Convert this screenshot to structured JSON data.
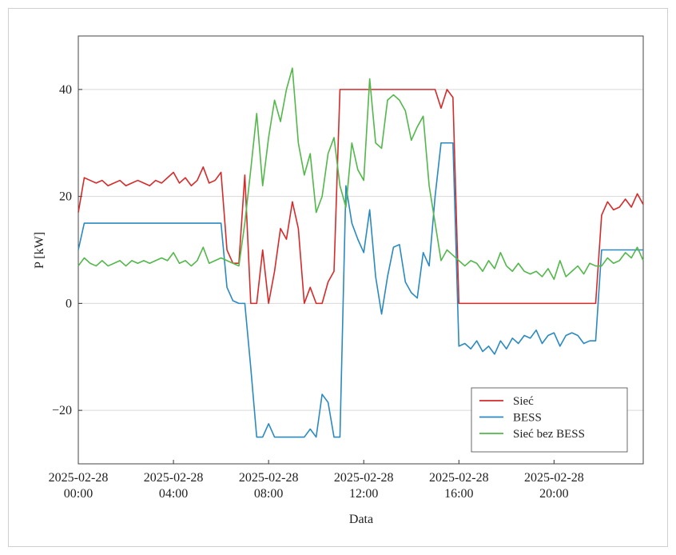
{
  "chart_data": {
    "type": "line",
    "xlabel": "Data",
    "ylabel": "P [kW]",
    "x": [
      "2025-02-28 00:00",
      "2025-02-28 00:15",
      "2025-02-28 00:30",
      "2025-02-28 00:45",
      "2025-02-28 01:00",
      "2025-02-28 01:15",
      "2025-02-28 01:30",
      "2025-02-28 01:45",
      "2025-02-28 02:00",
      "2025-02-28 02:15",
      "2025-02-28 02:30",
      "2025-02-28 02:45",
      "2025-02-28 03:00",
      "2025-02-28 03:15",
      "2025-02-28 03:30",
      "2025-02-28 03:45",
      "2025-02-28 04:00",
      "2025-02-28 04:15",
      "2025-02-28 04:30",
      "2025-02-28 04:45",
      "2025-02-28 05:00",
      "2025-02-28 05:15",
      "2025-02-28 05:30",
      "2025-02-28 05:45",
      "2025-02-28 06:00",
      "2025-02-28 06:15",
      "2025-02-28 06:30",
      "2025-02-28 06:45",
      "2025-02-28 07:00",
      "2025-02-28 07:15",
      "2025-02-28 07:30",
      "2025-02-28 07:45",
      "2025-02-28 08:00",
      "2025-02-28 08:15",
      "2025-02-28 08:30",
      "2025-02-28 08:45",
      "2025-02-28 09:00",
      "2025-02-28 09:15",
      "2025-02-28 09:30",
      "2025-02-28 09:45",
      "2025-02-28 10:00",
      "2025-02-28 10:15",
      "2025-02-28 10:30",
      "2025-02-28 10:45",
      "2025-02-28 11:00",
      "2025-02-28 11:15",
      "2025-02-28 11:30",
      "2025-02-28 11:45",
      "2025-02-28 12:00",
      "2025-02-28 12:15",
      "2025-02-28 12:30",
      "2025-02-28 12:45",
      "2025-02-28 13:00",
      "2025-02-28 13:15",
      "2025-02-28 13:30",
      "2025-02-28 13:45",
      "2025-02-28 14:00",
      "2025-02-28 14:15",
      "2025-02-28 14:30",
      "2025-02-28 14:45",
      "2025-02-28 15:00",
      "2025-02-28 15:15",
      "2025-02-28 15:30",
      "2025-02-28 15:45",
      "2025-02-28 16:00",
      "2025-02-28 16:15",
      "2025-02-28 16:30",
      "2025-02-28 16:45",
      "2025-02-28 17:00",
      "2025-02-28 17:15",
      "2025-02-28 17:30",
      "2025-02-28 17:45",
      "2025-02-28 18:00",
      "2025-02-28 18:15",
      "2025-02-28 18:30",
      "2025-02-28 18:45",
      "2025-02-28 19:00",
      "2025-02-28 19:15",
      "2025-02-28 19:30",
      "2025-02-28 19:45",
      "2025-02-28 20:00",
      "2025-02-28 20:15",
      "2025-02-28 20:30",
      "2025-02-28 20:45",
      "2025-02-28 21:00",
      "2025-02-28 21:15",
      "2025-02-28 21:30",
      "2025-02-28 21:45",
      "2025-02-28 22:00",
      "2025-02-28 22:15",
      "2025-02-28 22:30",
      "2025-02-28 22:45",
      "2025-02-28 23:00",
      "2025-02-28 23:15",
      "2025-02-28 23:30",
      "2025-02-28 23:45"
    ],
    "series": [
      {
        "name": "Sieć",
        "color": "#d62a2a",
        "values": [
          17,
          23.5,
          23,
          22.5,
          23,
          22,
          22.5,
          23,
          22,
          22.5,
          23,
          22.5,
          22,
          23,
          22.5,
          23.5,
          24.5,
          22.5,
          23.5,
          22,
          23,
          25.5,
          22.5,
          23,
          24.5,
          10,
          7.5,
          7.5,
          24,
          0,
          0,
          10,
          0,
          6,
          14,
          12,
          19,
          14,
          0,
          3,
          0,
          0,
          4,
          6,
          40,
          40,
          40,
          40,
          40,
          40,
          40,
          40,
          40,
          40,
          40,
          40,
          40,
          40,
          40,
          40,
          40,
          36.5,
          40,
          38.5,
          0,
          0,
          0,
          0,
          0,
          0,
          0,
          0,
          0,
          0,
          0,
          0,
          0,
          0,
          0,
          0,
          0,
          0,
          0,
          0,
          0,
          0,
          0,
          0,
          16.5,
          19,
          17.5,
          18,
          19.5,
          18,
          20.5,
          18.5
        ]
      },
      {
        "name": "BESS",
        "color": "#2a8ac0",
        "values": [
          10,
          15,
          15,
          15,
          15,
          15,
          15,
          15,
          15,
          15,
          15,
          15,
          15,
          15,
          15,
          15,
          15,
          15,
          15,
          15,
          15,
          15,
          15,
          15,
          15,
          3,
          0.5,
          0,
          0,
          -12,
          -25,
          -25,
          -22.5,
          -25,
          -25,
          -25,
          -25,
          -25,
          -25,
          -23.5,
          -25,
          -17,
          -18.5,
          -25,
          -25,
          22,
          15,
          12,
          9.5,
          17.5,
          5,
          -2,
          5,
          10.5,
          11,
          4,
          2,
          1,
          9.5,
          7,
          20,
          30,
          30,
          30,
          -8,
          -7.5,
          -8.5,
          -7,
          -9,
          -8,
          -9.5,
          -7,
          -8.5,
          -6.5,
          -7.5,
          -6,
          -6.5,
          -5,
          -7.5,
          -6,
          -5.5,
          -8,
          -6,
          -5.5,
          -6,
          -7.5,
          -7,
          -7,
          10,
          10,
          10,
          10,
          10,
          10,
          10,
          10
        ]
      },
      {
        "name": "Sieć bez BESS",
        "color": "#52b84a",
        "values": [
          7,
          8.5,
          7.5,
          7,
          8,
          7,
          7.5,
          8,
          7,
          8,
          7.5,
          8,
          7.5,
          8,
          8.5,
          8,
          9.5,
          7.5,
          8,
          7,
          8,
          10.5,
          7.5,
          8,
          8.5,
          8,
          7.5,
          7,
          15,
          25,
          35.5,
          22,
          31,
          38,
          34,
          40,
          44,
          30,
          24,
          28,
          17,
          20,
          28,
          31,
          22,
          18,
          30,
          25,
          23,
          42,
          30,
          29,
          38,
          39,
          38,
          36,
          30.5,
          33,
          35,
          22,
          15,
          8,
          10,
          9,
          8,
          7,
          8,
          7.5,
          6,
          8,
          6.5,
          9.5,
          7,
          6,
          7.5,
          6,
          5.5,
          6,
          5,
          6.5,
          4.5,
          8,
          5,
          6,
          7,
          5.5,
          7.5,
          7,
          7,
          8.5,
          7.5,
          8,
          9.5,
          8.5,
          10.5,
          8
        ]
      }
    ],
    "xlim": [
      "2025-02-28 00:00",
      "2025-02-28 23:45"
    ],
    "xticks": [
      "2025-02-28 00:00",
      "2025-02-28 04:00",
      "2025-02-28 08:00",
      "2025-02-28 12:00",
      "2025-02-28 16:00",
      "2025-02-28 20:00"
    ],
    "ylim": [
      -30,
      50
    ],
    "yticks": [
      {
        "value": -20,
        "label": "−20"
      },
      0,
      20,
      40
    ],
    "grid": true,
    "legend": "lower right"
  }
}
